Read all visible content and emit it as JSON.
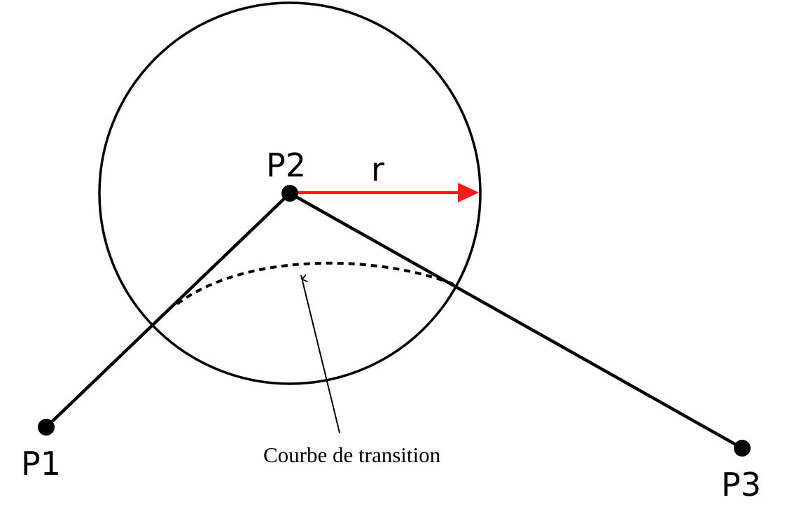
{
  "labels": {
    "p1": "P1",
    "p2": "P2",
    "p3": "P3",
    "radius": "r",
    "curve": "Courbe de transition"
  },
  "colors": {
    "line": "#000000",
    "radius_arrow": "#ff1a1a",
    "background": "#ffffff"
  }
}
